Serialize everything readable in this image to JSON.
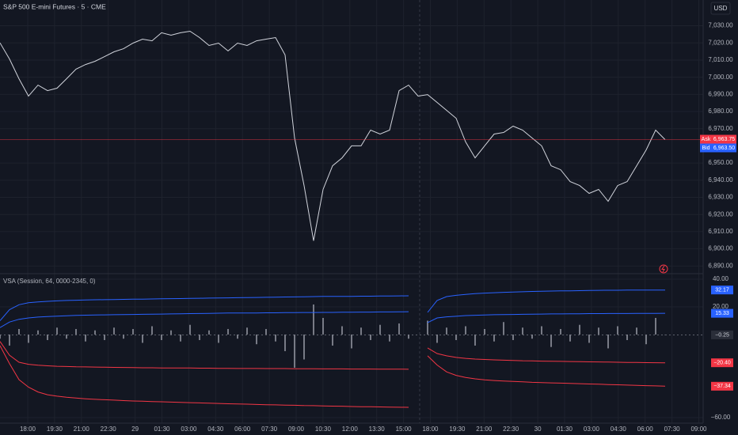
{
  "chart_data": [
    {
      "type": "line",
      "title": "S&P 500 E-mini Futures · 5 · CME",
      "currency": "USD",
      "color": "#d1d4dc",
      "values": [
        7020,
        7010.6,
        6999.1,
        6989,
        6995.4,
        6992.2,
        6993.6,
        6999.1,
        7004.7,
        7007.4,
        7009.3,
        7012,
        7014.8,
        7016.6,
        7019.9,
        7022.2,
        7021.2,
        7025.9,
        7024.5,
        7025.9,
        7026.8,
        7023.1,
        7018.5,
        7019.9,
        7015.3,
        7019.9,
        7018.5,
        7021.2,
        7022.2,
        7023.1,
        7013,
        6964.6,
        6936.9,
        6904.7,
        6934.6,
        6948.4,
        6953,
        6960,
        6960,
        6969.2,
        6966.9,
        6969.2,
        6992.2,
        6995.4,
        6989,
        6989.9,
        6985.3,
        6980.7,
        6976.1,
        6962.3,
        6953,
        6960,
        6966.9,
        6967.8,
        6971.5,
        6969.2,
        6964.6,
        6960,
        6948.4,
        6946.1,
        6939.2,
        6936.9,
        6932.3,
        6934.6,
        6927.7,
        6936.9,
        6939.2,
        6948.4,
        6957.6,
        6969.2,
        6963.6
      ],
      "ylim": [
        6886,
        7045
      ],
      "yticks": [
        {
          "value": 6890,
          "label": "6,890.00"
        },
        {
          "value": 6900,
          "label": "6,900.00"
        },
        {
          "value": 6910,
          "label": "6,910.00"
        },
        {
          "value": 6920,
          "label": "6,920.00"
        },
        {
          "value": 6930,
          "label": "6,930.00"
        },
        {
          "value": 6940,
          "label": "6,940.00"
        },
        {
          "value": 6950,
          "label": "6,950.00"
        },
        {
          "value": 6970,
          "label": "6,970.00"
        },
        {
          "value": 6980,
          "label": "6,980.00"
        },
        {
          "value": 6990,
          "label": "6,990.00"
        },
        {
          "value": 7000,
          "label": "7,000.00"
        },
        {
          "value": 7010,
          "label": "7,010.00"
        },
        {
          "value": 7020,
          "label": "7,020.00"
        },
        {
          "value": 7030,
          "label": "7,030.00"
        }
      ],
      "grid": true,
      "quotes": [
        {
          "name": "Ask",
          "value": 6963.75,
          "label": "6,963.75",
          "color": "#f23645"
        },
        {
          "name": "Bid",
          "value": 6963.5,
          "label": "6,963.50",
          "color": "#2962ff"
        }
      ]
    },
    {
      "type": "bar",
      "title": "VSA (Session, 64, 0000-2345, 0)",
      "color": "#787b86",
      "values": [
        -3,
        -8,
        4,
        -6,
        3,
        -4,
        5,
        -3,
        4,
        -5,
        3,
        -4,
        5,
        -3,
        4,
        -6,
        6,
        -4,
        3,
        -5,
        7,
        -4,
        3,
        -6,
        4,
        -3,
        5,
        -7,
        4,
        -5,
        -12,
        -24,
        -18,
        21.7,
        12,
        -8,
        6,
        -10,
        5,
        -4,
        7,
        -5,
        8,
        -3,
        null,
        10,
        -6,
        5,
        -4,
        6,
        -8,
        4,
        -5,
        9,
        -4,
        5,
        -3,
        6,
        -9,
        4,
        -5,
        7,
        -6,
        5,
        -10,
        6,
        -4,
        5,
        -7,
        12,
        -0.25
      ],
      "last_label": "−0.25",
      "lines": [
        {
          "color": "#2962ff",
          "last_label": "32.17",
          "values": [
            10,
            18,
            21.5,
            23,
            23.6,
            24,
            24.3,
            24.6,
            24.8,
            25,
            25.1,
            25.2,
            25.3,
            25.4,
            25.5,
            25.6,
            25.7,
            25.8,
            25.9,
            26,
            26.1,
            26.2,
            26.3,
            26.4,
            26.5,
            26.6,
            26.7,
            26.8,
            26.9,
            27,
            27.1,
            27.2,
            27.3,
            27.4,
            27.5,
            27.5,
            27.6,
            27.6,
            27.7,
            27.7,
            27.8,
            27.8,
            27.9,
            28,
            null,
            16,
            24.6,
            27.4,
            28.3,
            29,
            29.5,
            29.9,
            30.2,
            30.5,
            30.7,
            30.9,
            31.1,
            31.3,
            31.4,
            31.5,
            31.6,
            31.7,
            31.8,
            31.9,
            32,
            32,
            32.1,
            32.1,
            32.1,
            32.15,
            32.17
          ]
        },
        {
          "color": "#2962ff",
          "last_label": "15.33",
          "values": [
            5,
            9,
            11,
            12,
            12.6,
            13,
            13.3,
            13.6,
            13.8,
            14,
            14.1,
            14.2,
            14.3,
            14.4,
            14.5,
            14.6,
            14.7,
            14.8,
            14.9,
            15,
            15.1,
            15.2,
            15.3,
            15.4,
            15.5,
            15.5,
            15.6,
            15.6,
            15.7,
            15.7,
            15.8,
            15.8,
            15.9,
            15.9,
            16,
            16,
            16.1,
            16.1,
            16.2,
            16.2,
            16.3,
            16.3,
            16.4,
            16.5,
            null,
            8.6,
            12,
            12.8,
            13.2,
            13.7,
            13.9,
            14.1,
            14.3,
            14.4,
            14.5,
            14.6,
            14.7,
            14.8,
            14.9,
            14.9,
            15,
            15,
            15.1,
            15.1,
            15.2,
            15.2,
            15.2,
            15.3,
            15.3,
            15.3,
            15.33
          ]
        },
        {
          "color": "#f23645",
          "last_label": "−20.40",
          "values": [
            -5,
            -15,
            -20,
            -21.5,
            -22.2,
            -22.6,
            -22.9,
            -23.1,
            -23.3,
            -23.4,
            -23.5,
            -23.6,
            -23.7,
            -23.8,
            -23.9,
            -24,
            -24,
            -24.1,
            -24.1,
            -24.2,
            -24.2,
            -24.3,
            -24.3,
            -24.4,
            -24.4,
            -24.5,
            -24.5,
            -24.5,
            -24.6,
            -24.6,
            -24.6,
            -24.7,
            -24.7,
            -24.7,
            -24.8,
            -24.8,
            -24.8,
            -24.9,
            -24.9,
            -24.9,
            -25,
            -25,
            -25,
            -25.1,
            null,
            -9.7,
            -13.7,
            -15.4,
            -16.5,
            -17.2,
            -17.7,
            -18,
            -18.3,
            -18.5,
            -18.7,
            -18.9,
            -19,
            -19.2,
            -19.3,
            -19.4,
            -19.5,
            -19.6,
            -19.7,
            -19.8,
            -19.9,
            -20,
            -20.1,
            -20.2,
            -20.3,
            -20.35,
            -20.4
          ]
        },
        {
          "color": "#f23645",
          "last_label": "−37.34",
          "values": [
            -8,
            -21,
            -32.6,
            -38,
            -41.5,
            -43.5,
            -44.5,
            -45.3,
            -45.9,
            -46.4,
            -46.8,
            -47.1,
            -47.4,
            -47.7,
            -48,
            -48.2,
            -48.4,
            -48.6,
            -48.8,
            -49,
            -49.2,
            -49.4,
            -49.6,
            -49.8,
            -50,
            -50.2,
            -50.3,
            -50.5,
            -50.7,
            -50.8,
            -51,
            -51.1,
            -51.3,
            -51.4,
            -51.6,
            -51.7,
            -51.8,
            -52,
            -52.1,
            -52.2,
            -52.3,
            -52.4,
            -52.5,
            -52.6,
            null,
            -15.4,
            -22,
            -27,
            -29.5,
            -31,
            -32,
            -32.7,
            -33.2,
            -33.6,
            -33.9,
            -34.2,
            -34.5,
            -34.7,
            -34.9,
            -35.1,
            -35.3,
            -35.5,
            -35.7,
            -35.9,
            -36.1,
            -36.3,
            -36.5,
            -36.7,
            -36.9,
            -37.1,
            -37.34
          ]
        }
      ],
      "ylim": [
        -64,
        43.4
      ],
      "yticks": [
        {
          "value": 40,
          "label": "40.00"
        },
        {
          "value": 20,
          "label": "20.00"
        },
        {
          "value": -60,
          "label": "−60.00"
        }
      ],
      "grid": true,
      "time_labels": [
        "18:00",
        "19:30",
        "21:00",
        "22:30",
        "29",
        "01:30",
        "03:00",
        "04:30",
        "06:00",
        "07:30",
        "09:00",
        "10:30",
        "12:00",
        "13:30",
        "15:00",
        "18:00",
        "19:30",
        "21:00",
        "22:30",
        "30",
        "01:30",
        "03:00",
        "04:30",
        "06:00",
        "07:30",
        "09:00"
      ]
    }
  ]
}
